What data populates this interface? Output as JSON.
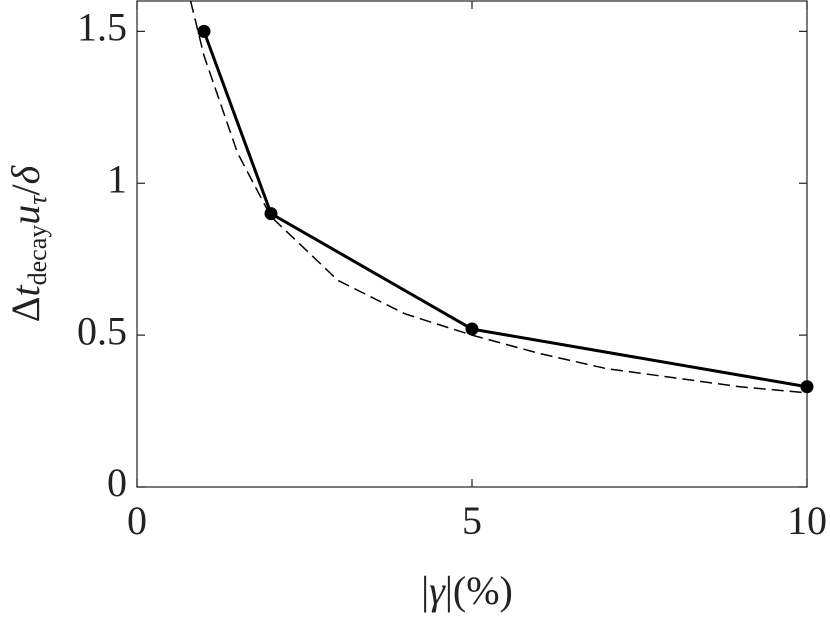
{
  "chart_data": {
    "type": "line",
    "xlabel": {
      "parts": [
        "|",
        "γ",
        "|(%)"
      ]
    },
    "ylabel": {
      "parts": [
        "Δ",
        "t",
        "decay",
        "u",
        "τ",
        "/",
        "δ"
      ]
    },
    "xlim": [
      0,
      10
    ],
    "ylim": [
      0,
      1.6
    ],
    "xticks": [
      0,
      5,
      10
    ],
    "yticks": [
      0,
      0.5,
      1,
      1.5
    ],
    "series": [
      {
        "color": "#000000",
        "style": "solid",
        "marker": "circle",
        "x": [
          1,
          2,
          5,
          10
        ],
        "values": [
          1.5,
          0.9,
          0.52,
          0.33
        ]
      },
      {
        "color": "#000000",
        "style": "dashed",
        "marker": "none",
        "x": [
          0.8,
          1,
          1.5,
          2,
          3,
          4,
          5,
          6,
          7,
          8,
          9,
          10
        ],
        "values": [
          1.6,
          1.42,
          1.1,
          0.89,
          0.68,
          0.57,
          0.5,
          0.44,
          0.39,
          0.36,
          0.33,
          0.31
        ]
      }
    ]
  }
}
